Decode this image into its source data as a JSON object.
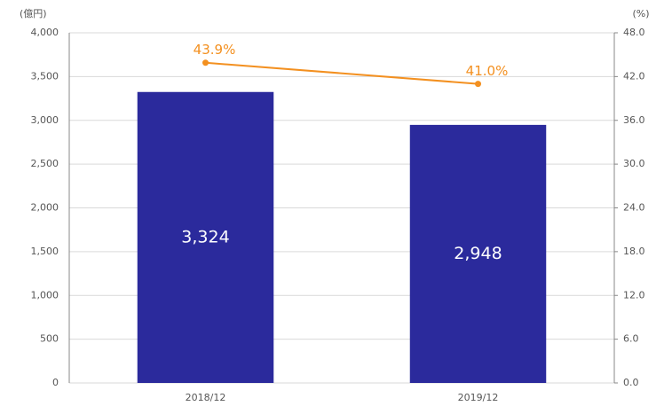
{
  "chart_data": {
    "type": "combo",
    "ylabel": "(億円)",
    "y2label": "(%)",
    "categories": [
      "2018/12",
      "2019/12"
    ],
    "series": [
      {
        "type": "bar",
        "color": "#2b2a9c",
        "values": [
          3324,
          2948
        ],
        "value_labels": [
          "3,324",
          "2,948"
        ]
      },
      {
        "type": "line",
        "axis": "y2",
        "color": "#f39020",
        "values": [
          43.9,
          41.0
        ],
        "value_labels": [
          "43.9%",
          "41.0%"
        ]
      }
    ],
    "ylim": [
      0,
      4000
    ],
    "yticks": [
      0,
      500,
      {
        "value": 1000,
        "label": "1,000"
      },
      {
        "value": 1500,
        "label": "1,500"
      },
      {
        "value": 2000,
        "label": "2,000"
      },
      {
        "value": 2500,
        "label": "2,500"
      },
      {
        "value": 3000,
        "label": "3,000"
      },
      {
        "value": 3500,
        "label": "3,500"
      },
      {
        "value": 4000,
        "label": "4,000"
      }
    ],
    "y2lim": [
      0,
      48
    ],
    "y2ticks": [
      {
        "value": 0,
        "label": "0.0"
      },
      {
        "value": 6,
        "label": "6.0"
      },
      {
        "value": 12,
        "label": "12.0"
      },
      {
        "value": 18,
        "label": "18.0"
      },
      {
        "value": 24,
        "label": "24.0"
      },
      {
        "value": 30,
        "label": "30.0"
      },
      {
        "value": 36,
        "label": "36.0"
      },
      {
        "value": 42,
        "label": "42.0"
      },
      {
        "value": 48,
        "label": "48.0"
      }
    ],
    "grid": true
  }
}
